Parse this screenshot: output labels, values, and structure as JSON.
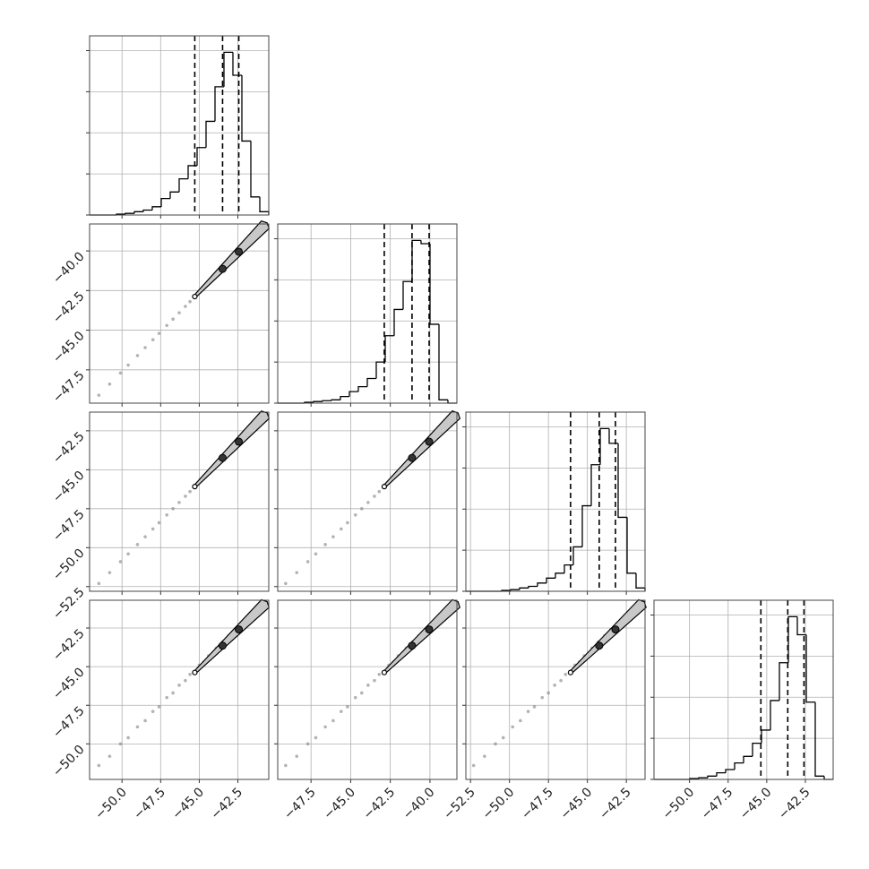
{
  "chart_data": {
    "type": "corner",
    "grid": true,
    "color": "#000000",
    "sample_color": "#808080",
    "contour_color": "#c8c8c8",
    "params": [
      {
        "xlim": [
          -52.1,
          -40.5
        ],
        "ticks": [
          {
            "value": -50,
            "label": "−50.0"
          },
          {
            "value": -47.5,
            "label": "−47.5"
          },
          {
            "value": -45,
            "label": "−45.0"
          },
          {
            "value": -42.5,
            "label": "−42.5"
          }
        ],
        "quantiles": [
          -45.29,
          -43.49,
          -42.44
        ],
        "hist": {
          "bins": [
            -52.1,
            -51.52,
            -50.94,
            -50.36,
            -49.78,
            -49.2,
            -48.62,
            -48.04,
            -47.46,
            -46.88,
            -46.3,
            -45.72,
            -45.14,
            -44.56,
            -43.98,
            -43.4,
            -42.82,
            -42.24,
            -41.66,
            -41.08,
            -40.5
          ],
          "values": [
            0,
            0,
            0,
            0.005,
            0.01,
            0.02,
            0.03,
            0.05,
            0.1,
            0.14,
            0.22,
            0.3,
            0.41,
            0.57,
            0.78,
            0.99,
            0.85,
            0.45,
            0.11,
            0.02
          ],
          "ylim": [
            0,
            1.09
          ],
          "yticks": [
            0,
            0.25,
            0.5,
            0.75,
            1
          ]
        }
      },
      {
        "xlim": [
          -49.6,
          -38.3
        ],
        "ticks": [
          {
            "value": -47.5,
            "label": "−47.5"
          },
          {
            "value": -45,
            "label": "−45.0"
          },
          {
            "value": -42.5,
            "label": "−42.5"
          },
          {
            "value": -40,
            "label": "−40.0"
          }
        ],
        "quantiles": [
          -42.88,
          -41.13,
          -40.05
        ],
        "hist": {
          "bins": [
            -49.6,
            -49.035,
            -48.47,
            -47.905,
            -47.34,
            -46.775,
            -46.21,
            -45.645,
            -45.08,
            -44.515,
            -43.95,
            -43.385,
            -42.82,
            -42.255,
            -41.69,
            -41.125,
            -40.56,
            -39.995,
            -39.43,
            -38.865,
            -38.3
          ],
          "values": [
            0,
            0,
            0,
            0.005,
            0.01,
            0.015,
            0.02,
            0.04,
            0.07,
            0.1,
            0.15,
            0.25,
            0.41,
            0.57,
            0.74,
            0.99,
            0.97,
            0.48,
            0.02,
            0
          ],
          "ylim": [
            0,
            1.09
          ],
          "yticks": [
            0,
            0.25,
            0.5,
            0.75,
            1
          ]
        }
      },
      {
        "xlim": [
          -52.8,
          -41.3
        ],
        "ticks": [
          {
            "value": -52.5,
            "label": "−52.5"
          },
          {
            "value": -50,
            "label": "−50.0"
          },
          {
            "value": -47.5,
            "label": "−47.5"
          },
          {
            "value": -45,
            "label": "−45.0"
          },
          {
            "value": -42.5,
            "label": "−42.5"
          }
        ],
        "quantiles": [
          -46.08,
          -44.24,
          -43.2
        ],
        "hist": {
          "bins": [
            -52.8,
            -52.225,
            -51.65,
            -51.075,
            -50.5,
            -49.925,
            -49.35,
            -48.775,
            -48.2,
            -47.625,
            -47.05,
            -46.475,
            -45.9,
            -45.325,
            -44.75,
            -44.175,
            -43.6,
            -43.025,
            -42.45,
            -41.875,
            -41.3
          ],
          "values": [
            0,
            0,
            0,
            0,
            0.005,
            0.01,
            0.02,
            0.03,
            0.05,
            0.08,
            0.11,
            0.16,
            0.27,
            0.52,
            0.77,
            0.99,
            0.9,
            0.45,
            0.11,
            0.02
          ],
          "ylim": [
            0,
            1.09
          ],
          "yticks": [
            0,
            0.25,
            0.5,
            0.75,
            1
          ]
        }
      },
      {
        "xlim": [
          -52.3,
          -40.7
        ],
        "ticks": [
          {
            "value": -50,
            "label": "−50.0"
          },
          {
            "value": -47.5,
            "label": "−47.5"
          },
          {
            "value": -45,
            "label": "−45.0"
          },
          {
            "value": -42.5,
            "label": "−42.5"
          }
        ],
        "quantiles": [
          -45.38,
          -43.64,
          -42.59
        ],
        "hist": {
          "bins": [
            -52.3,
            -51.72,
            -51.14,
            -50.56,
            -49.98,
            -49.4,
            -48.82,
            -48.24,
            -47.66,
            -47.08,
            -46.5,
            -45.92,
            -45.34,
            -44.76,
            -44.18,
            -43.6,
            -43.02,
            -42.44,
            -41.86,
            -41.28,
            -40.7
          ],
          "values": [
            0,
            0,
            0,
            0,
            0.005,
            0.01,
            0.02,
            0.04,
            0.06,
            0.1,
            0.14,
            0.22,
            0.3,
            0.48,
            0.71,
            0.99,
            0.88,
            0.47,
            0.02,
            0
          ],
          "ylim": [
            0,
            1.09
          ],
          "yticks": [
            0,
            0.25,
            0.5,
            0.75,
            1
          ]
        }
      }
    ],
    "samples": [
      [
        -51.5,
        -49.1,
        -52.3,
        -51.4
      ],
      [
        -50.8,
        -48.4,
        -51.6,
        -50.8
      ],
      [
        -50.1,
        -47.7,
        -50.9,
        -50.0
      ],
      [
        -49.6,
        -47.2,
        -50.4,
        -49.6
      ],
      [
        -49.0,
        -46.6,
        -49.8,
        -48.9
      ],
      [
        -48.5,
        -46.1,
        -49.3,
        -48.5
      ],
      [
        -48.0,
        -45.6,
        -48.8,
        -47.9
      ],
      [
        -47.6,
        -45.2,
        -48.4,
        -47.6
      ],
      [
        -47.1,
        -44.7,
        -47.9,
        -47.0
      ],
      [
        -46.7,
        -44.3,
        -47.5,
        -46.7
      ],
      [
        -46.3,
        -43.9,
        -47.1,
        -46.2
      ],
      [
        -45.9,
        -43.5,
        -46.7,
        -45.9
      ],
      [
        -45.6,
        -43.2,
        -46.4,
        -45.5
      ],
      [
        -45.3,
        -42.9,
        -46.1,
        -45.3
      ],
      [
        -45.0,
        -42.6,
        -45.8,
        -44.9
      ],
      [
        -44.7,
        -42.3,
        -45.5,
        -44.7
      ],
      [
        -44.4,
        -42.0,
        -45.2,
        -44.3
      ],
      [
        -44.1,
        -41.7,
        -44.9,
        -44.1
      ],
      [
        -43.9,
        -41.5,
        -44.7,
        -43.8
      ],
      [
        -43.7,
        -41.3,
        -44.5,
        -43.7
      ],
      [
        -43.5,
        -41.1,
        -44.3,
        -43.4
      ],
      [
        -43.3,
        -40.9,
        -44.1,
        -43.3
      ],
      [
        -43.1,
        -40.7,
        -43.9,
        -43.0
      ],
      [
        -42.9,
        -40.5,
        -43.7,
        -42.9
      ],
      [
        -42.7,
        -40.3,
        -43.5,
        -42.6
      ],
      [
        -42.5,
        -40.1,
        -43.3,
        -42.5
      ],
      [
        -42.3,
        -39.9,
        -43.1,
        -42.2
      ],
      [
        -42.1,
        -39.7,
        -42.9,
        -42.1
      ],
      [
        -41.9,
        -39.5,
        -42.7,
        -41.8
      ],
      [
        -41.6,
        -39.2,
        -42.4,
        -41.6
      ],
      [
        -41.3,
        -38.9,
        -42.1,
        -41.2
      ]
    ]
  }
}
